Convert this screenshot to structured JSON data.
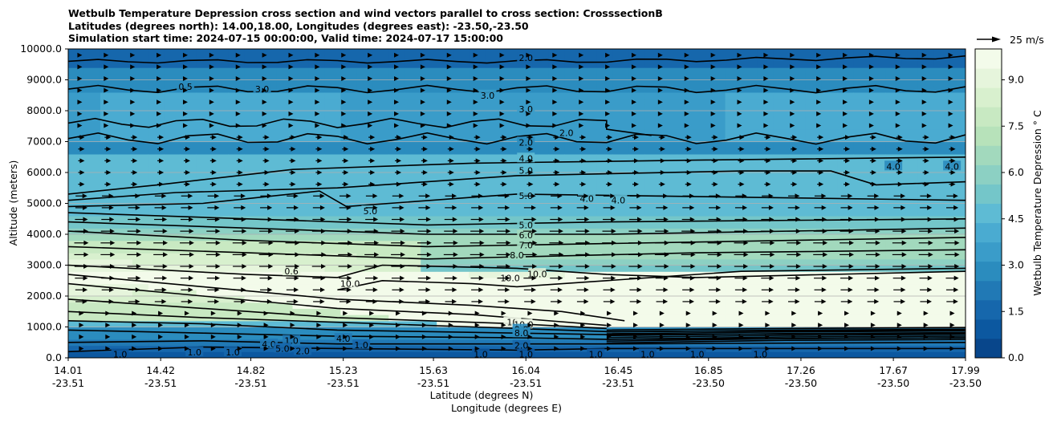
{
  "chart_data": {
    "type": "heatmap",
    "title_lines": [
      "Wetbulb Temperature Depression cross section and wind vectors parallel to cross section: CrosssectionB",
      "Latitudes (degrees north): 14.00,18.00, Longitudes (degrees east): -23.50,-23.50",
      "Simulation start time: 2024-07-15 00:00:00, Valid time: 2024-07-17 15:00:00"
    ],
    "ylabel": "Altitude (meters)",
    "xlabel_lines": [
      "Latitude (degrees N)",
      "Longitude (degrees E)"
    ],
    "ylim": [
      0,
      10000
    ],
    "y_ticks": [
      "0.0",
      "1000.0",
      "2000.0",
      "3000.0",
      "4000.0",
      "5000.0",
      "6000.0",
      "7000.0",
      "8000.0",
      "9000.0",
      "10000.0"
    ],
    "y_tick_values": [
      0,
      1000,
      2000,
      3000,
      4000,
      5000,
      6000,
      7000,
      8000,
      9000,
      10000
    ],
    "x_ticks": [
      {
        "lat": "14.01",
        "lon": "-23.51"
      },
      {
        "lat": "14.42",
        "lon": "-23.51"
      },
      {
        "lat": "14.82",
        "lon": "-23.51"
      },
      {
        "lat": "15.23",
        "lon": "-23.51"
      },
      {
        "lat": "15.63",
        "lon": "-23.51"
      },
      {
        "lat": "16.04",
        "lon": "-23.51"
      },
      {
        "lat": "16.45",
        "lon": "-23.51"
      },
      {
        "lat": "16.85",
        "lon": "-23.50"
      },
      {
        "lat": "17.26",
        "lon": "-23.50"
      },
      {
        "lat": "17.67",
        "lon": "-23.50"
      },
      {
        "lat": "17.99",
        "lon": "-23.50"
      }
    ],
    "x_tick_values": [
      14.01,
      14.42,
      14.82,
      15.23,
      15.63,
      16.04,
      16.45,
      16.85,
      17.26,
      17.67,
      17.99
    ],
    "xlim": [
      14.01,
      17.99
    ],
    "colorbar": {
      "label": "Wetbulb Temperature Depression ° C",
      "ticks": [
        "0.0",
        "1.5",
        "3.0",
        "4.5",
        "6.0",
        "7.5",
        "9.0"
      ],
      "tick_values": [
        0,
        1.5,
        3,
        4.5,
        6,
        7.5,
        9
      ],
      "range": [
        0,
        10
      ],
      "colors": [
        "#08468b",
        "#0c58a0",
        "#1667ac",
        "#2179b5",
        "#2b8cbe",
        "#3a9cc9",
        "#4aabd1",
        "#5ebbd4",
        "#74c6c9",
        "#8cd0c3",
        "#a2d9bd",
        "#b7e2ba",
        "#c8e9c2",
        "#d8f0ce",
        "#e6f5dc",
        "#f3fbea"
      ]
    },
    "wind_key": {
      "label": "25 m/s",
      "value": 25
    },
    "contour_labels": [
      {
        "text": "2.0",
        "lat": 16.04,
        "alt": 9710
      },
      {
        "text": "3.0",
        "lat": 14.87,
        "alt": 8700
      },
      {
        "text": "3.0",
        "lat": 15.87,
        "alt": 8500
      },
      {
        "text": "0.5",
        "lat": 14.53,
        "alt": 8780
      },
      {
        "text": "3.0",
        "lat": 16.04,
        "alt": 8050
      },
      {
        "text": "2.0",
        "lat": 16.22,
        "alt": 7280
      },
      {
        "text": "2.0",
        "lat": 16.04,
        "alt": 6980
      },
      {
        "text": "4.0",
        "lat": 16.04,
        "alt": 6460
      },
      {
        "text": "5.0",
        "lat": 16.04,
        "alt": 6070
      },
      {
        "text": "5.0",
        "lat": 15.35,
        "alt": 4750
      },
      {
        "text": "5.0",
        "lat": 16.04,
        "alt": 5250
      },
      {
        "text": "4.0",
        "lat": 16.31,
        "alt": 5150
      },
      {
        "text": "4.0",
        "lat": 16.45,
        "alt": 5100
      },
      {
        "text": "4.0",
        "lat": 17.67,
        "alt": 6200
      },
      {
        "text": "4.0",
        "lat": 17.93,
        "alt": 6200
      },
      {
        "text": "5.0",
        "lat": 16.04,
        "alt": 4300
      },
      {
        "text": "6.0",
        "lat": 16.04,
        "alt": 3970
      },
      {
        "text": "7.0",
        "lat": 16.04,
        "alt": 3650
      },
      {
        "text": "8.0",
        "lat": 16.0,
        "alt": 3320
      },
      {
        "text": "0.6",
        "lat": 15.0,
        "alt": 2800
      },
      {
        "text": "10.0",
        "lat": 15.26,
        "alt": 2400
      },
      {
        "text": "10.0",
        "lat": 15.97,
        "alt": 2580
      },
      {
        "text": "10.0",
        "lat": 16.09,
        "alt": 2720
      },
      {
        "text": "10",
        "lat": 15.98,
        "alt": 1150
      },
      {
        "text": "10.0",
        "lat": 16.03,
        "alt": 1080
      },
      {
        "text": "9.0",
        "lat": 16.02,
        "alt": 920
      },
      {
        "text": "8.0",
        "lat": 16.02,
        "alt": 800
      },
      {
        "text": "2.0",
        "lat": 16.02,
        "alt": 400
      },
      {
        "text": "4.0",
        "lat": 15.23,
        "alt": 620
      },
      {
        "text": "1.0",
        "lat": 14.24,
        "alt": 120
      },
      {
        "text": "1.0",
        "lat": 14.57,
        "alt": 180
      },
      {
        "text": "1.0",
        "lat": 14.74,
        "alt": 180
      },
      {
        "text": "1.0",
        "lat": 15.0,
        "alt": 560
      },
      {
        "text": "1.0",
        "lat": 15.31,
        "alt": 420
      },
      {
        "text": "1.0",
        "lat": 15.84,
        "alt": 120
      },
      {
        "text": "1.0",
        "lat": 16.04,
        "alt": 120
      },
      {
        "text": "1.0",
        "lat": 16.35,
        "alt": 120
      },
      {
        "text": "1.0",
        "lat": 16.58,
        "alt": 120
      },
      {
        "text": "1.0",
        "lat": 16.8,
        "alt": 120
      },
      {
        "text": "1.0",
        "lat": 17.08,
        "alt": 120
      },
      {
        "text": "2.0",
        "lat": 15.05,
        "alt": 220
      },
      {
        "text": "4.0",
        "lat": 14.9,
        "alt": 440
      },
      {
        "text": "5.0",
        "lat": 14.96,
        "alt": 300
      }
    ]
  }
}
